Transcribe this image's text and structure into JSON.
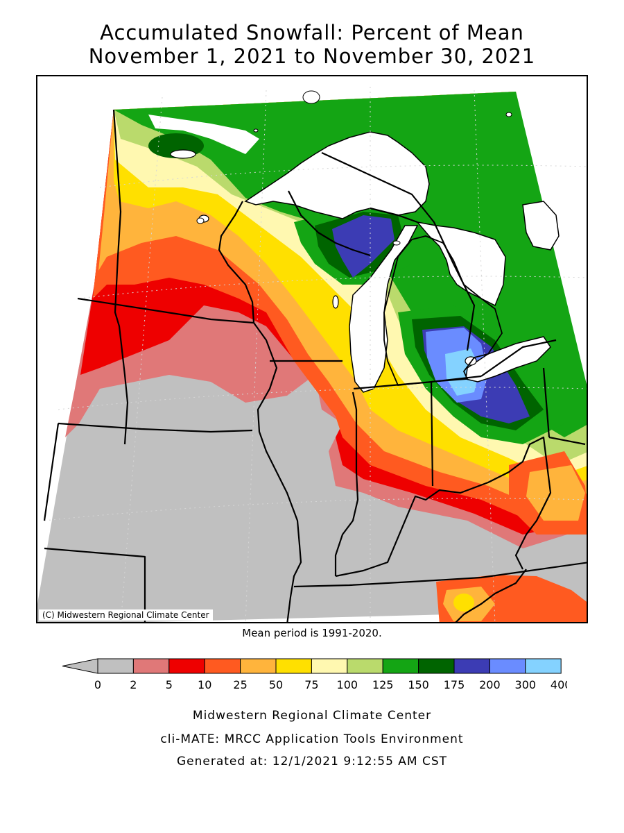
{
  "title_line1": "Accumulated Snowfall: Percent of Mean",
  "title_line2": "November 1, 2021 to November 30, 2021",
  "copyright": "(C) Midwestern Regional Climate Center",
  "mean_note": "Mean period is 1991-2020.",
  "legend": {
    "below_min_color": "#c0c0c0",
    "bins": [
      {
        "from": "0",
        "to": "2",
        "color": "#c0c0c0"
      },
      {
        "from": "2",
        "to": "5",
        "color": "#e07878"
      },
      {
        "from": "5",
        "to": "10",
        "color": "#ee0000"
      },
      {
        "from": "10",
        "to": "25",
        "color": "#ff5a20"
      },
      {
        "from": "25",
        "to": "50",
        "color": "#ffb43c"
      },
      {
        "from": "50",
        "to": "75",
        "color": "#ffe000"
      },
      {
        "from": "75",
        "to": "100",
        "color": "#fff8b0"
      },
      {
        "from": "100",
        "to": "125",
        "color": "#bada6c"
      },
      {
        "from": "125",
        "to": "150",
        "color": "#14a514"
      },
      {
        "from": "150",
        "to": "175",
        "color": "#006400"
      },
      {
        "from": "175",
        "to": "200",
        "color": "#3c3cb4"
      },
      {
        "from": "200",
        "to": "300",
        "color": "#6a8cff"
      },
      {
        "from": "300",
        "to": "400",
        "color": "#84d2ff"
      }
    ],
    "tick_labels": [
      "0",
      "2",
      "5",
      "10",
      "25",
      "50",
      "75",
      "100",
      "125",
      "150",
      "175",
      "200",
      "300",
      "400"
    ]
  },
  "credit_line1": "Midwestern Regional Climate Center",
  "credit_line2": "cli-MATE: MRCC Application Tools Environment",
  "credit_line3": "Generated at: 12/1/2021 9:12:55 AM CST"
}
